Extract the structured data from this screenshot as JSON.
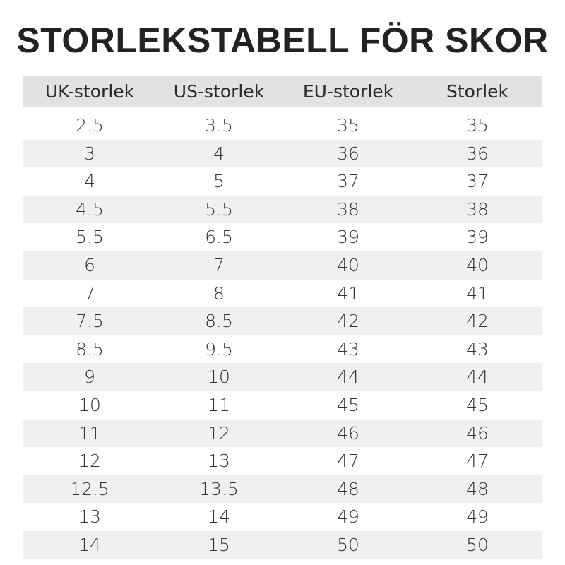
{
  "title": "STORLEKSTABELL FÖR SKOR",
  "table": {
    "header": [
      "UK-storlek",
      "US-storlek",
      "EU-storlek",
      "Storlek"
    ],
    "rows": [
      [
        "2.5",
        "3.5",
        "35",
        "35"
      ],
      [
        "3",
        "4",
        "36",
        "36"
      ],
      [
        "4",
        "5",
        "37",
        "37"
      ],
      [
        "4.5",
        "5.5",
        "38",
        "38"
      ],
      [
        "5.5",
        "6.5",
        "39",
        "39"
      ],
      [
        "6",
        "7",
        "40",
        "40"
      ],
      [
        "7",
        "8",
        "41",
        "41"
      ],
      [
        "7.5",
        "8.5",
        "42",
        "42"
      ],
      [
        "8.5",
        "9.5",
        "43",
        "43"
      ],
      [
        "9",
        "10",
        "44",
        "44"
      ],
      [
        "10",
        "11",
        "45",
        "45"
      ],
      [
        "11",
        "12",
        "46",
        "46"
      ],
      [
        "12",
        "13",
        "47",
        "47"
      ],
      [
        "12.5",
        "13.5",
        "48",
        "48"
      ],
      [
        "13",
        "14",
        "49",
        "49"
      ],
      [
        "14",
        "15",
        "50",
        "50"
      ]
    ]
  }
}
